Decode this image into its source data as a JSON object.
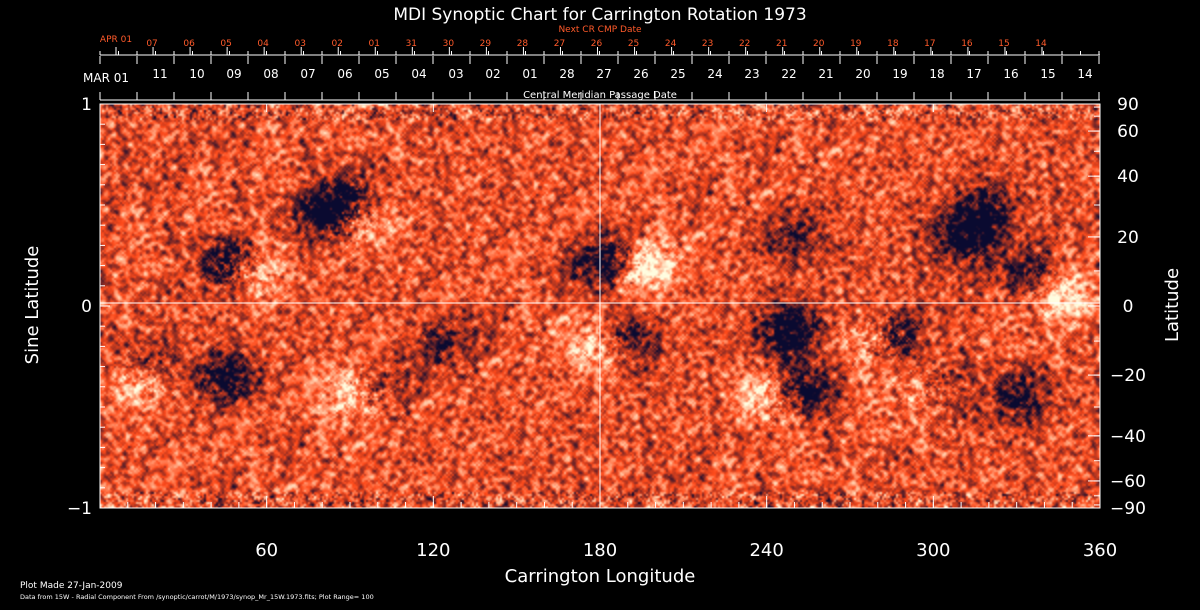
{
  "chart_data": {
    "type": "heatmap",
    "title": "MDI Synoptic Chart for Carrington Rotation 1973",
    "xlabel": "Carrington Longitude",
    "ylabel_left": "Sine Latitude",
    "ylabel_right": "Latitude",
    "top_axis_label": "Central Meridian Passage Date",
    "next_axis_label": "Next CR CMP Date",
    "xlim": [
      0,
      360
    ],
    "ylim": [
      -1,
      1
    ],
    "x_ticks": [
      60,
      120,
      180,
      240,
      300,
      360
    ],
    "y_ticks_left": [
      {
        "value": 1,
        "label": "1"
      },
      {
        "value": 0,
        "label": "0"
      },
      {
        "value": -1,
        "label": "−1"
      }
    ],
    "y_ticks_right": [
      90,
      60,
      40,
      20,
      0,
      -20,
      -40,
      -60,
      -90
    ],
    "y_ticks_right_labels": [
      "90",
      "60",
      "40",
      "20",
      "0",
      "−20",
      "−40",
      "−60",
      "−90"
    ],
    "cmp_dates": {
      "start_label": "MAR 01",
      "labels": [
        "11",
        "10",
        "09",
        "08",
        "07",
        "06",
        "05",
        "04",
        "03",
        "02",
        "01",
        "28",
        "27",
        "26",
        "25",
        "24",
        "23",
        "22",
        "21",
        "20",
        "19",
        "18",
        "17",
        "16",
        "15",
        "14"
      ]
    },
    "next_cmp_dates": {
      "start_label": "APR 01",
      "labels": [
        "07",
        "06",
        "05",
        "04",
        "03",
        "02",
        "01",
        "31",
        "30",
        "29",
        "28",
        "27",
        "26",
        "25",
        "24",
        "23",
        "22",
        "21",
        "20",
        "19",
        "18",
        "17",
        "16",
        "15",
        "14"
      ]
    },
    "colormap": {
      "negative": "#0a0a30",
      "mid": "#ff4a1a",
      "positive": "#fffde0"
    },
    "active_regions": [
      {
        "lon": 47,
        "lat": 0.21,
        "polarity": -1,
        "strength": 0.9
      },
      {
        "lon": 55,
        "lat": 0.18,
        "polarity": 1,
        "strength": 0.7
      },
      {
        "lon": 83,
        "lat": 0.45,
        "polarity": -1,
        "strength": 0.9
      },
      {
        "lon": 92,
        "lat": 0.43,
        "polarity": 1,
        "strength": 0.8
      },
      {
        "lon": 88,
        "lat": 0.52,
        "polarity": -1,
        "strength": 0.7
      },
      {
        "lon": 182,
        "lat": 0.22,
        "polarity": -1,
        "strength": 1.0
      },
      {
        "lon": 195,
        "lat": 0.2,
        "polarity": 1,
        "strength": 0.9
      },
      {
        "lon": 250,
        "lat": 0.35,
        "polarity": -1,
        "strength": 0.5
      },
      {
        "lon": 318,
        "lat": 0.47,
        "polarity": -1,
        "strength": 0.7
      },
      {
        "lon": 310,
        "lat": 0.33,
        "polarity": -1,
        "strength": 0.7
      },
      {
        "lon": 335,
        "lat": 0.15,
        "polarity": -1,
        "strength": 0.6
      },
      {
        "lon": 345,
        "lat": 0.05,
        "polarity": 1,
        "strength": 0.7
      },
      {
        "lon": 15,
        "lat": -0.37,
        "polarity": 1,
        "strength": 0.7
      },
      {
        "lon": 17,
        "lat": -0.3,
        "polarity": -1,
        "strength": 0.6
      },
      {
        "lon": 45,
        "lat": -0.35,
        "polarity": -1,
        "strength": 0.7
      },
      {
        "lon": 92,
        "lat": -0.43,
        "polarity": 1,
        "strength": 0.8
      },
      {
        "lon": 100,
        "lat": -0.4,
        "polarity": -1,
        "strength": 0.6
      },
      {
        "lon": 125,
        "lat": -0.17,
        "polarity": -1,
        "strength": 0.5
      },
      {
        "lon": 178,
        "lat": -0.2,
        "polarity": 1,
        "strength": 0.6
      },
      {
        "lon": 190,
        "lat": -0.17,
        "polarity": -1,
        "strength": 0.6
      },
      {
        "lon": 248,
        "lat": -0.12,
        "polarity": -1,
        "strength": 0.9
      },
      {
        "lon": 240,
        "lat": -0.45,
        "polarity": 1,
        "strength": 0.7
      },
      {
        "lon": 252,
        "lat": -0.42,
        "polarity": -1,
        "strength": 0.8
      },
      {
        "lon": 285,
        "lat": -0.15,
        "polarity": -1,
        "strength": 0.8
      },
      {
        "lon": 278,
        "lat": -0.17,
        "polarity": 1,
        "strength": 0.7
      },
      {
        "lon": 300,
        "lat": -0.4,
        "polarity": -1,
        "strength": 0.6
      },
      {
        "lon": 295,
        "lat": -0.42,
        "polarity": 1,
        "strength": 0.6
      },
      {
        "lon": 330,
        "lat": -0.45,
        "polarity": -1,
        "strength": 0.6
      }
    ]
  },
  "footer": {
    "plot_made": "Plot Made 27-Jan-2009",
    "data_source": "Data from 15W - Radial Component From /synoptic/carrot/M/1973/synop_Mr_15W.1973.fits; Plot Range=  100"
  }
}
